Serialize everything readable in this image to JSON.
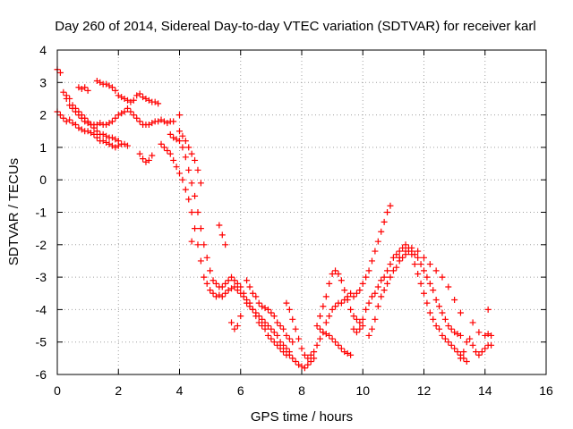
{
  "chart_data": {
    "type": "scatter",
    "title": "Day 260 of 2014, Sidereal Day-to-day VTEC variation (SDTVAR) for receiver karl",
    "xlabel": "GPS time / hours",
    "ylabel": "SDTVAR / TECUs",
    "xlim": [
      0,
      16
    ],
    "ylim": [
      -6,
      4
    ],
    "xticks": [
      "0",
      "2",
      "4",
      "6",
      "8",
      "10",
      "12",
      "14",
      "16"
    ],
    "yticks": [
      "4",
      "3",
      "2",
      "1",
      "0",
      "-1",
      "-2",
      "-3",
      "-4",
      "-5",
      "-6"
    ],
    "grid": true,
    "marker": "plus",
    "color": "#ff0000",
    "series": [
      {
        "x": [
          0.0,
          0.1,
          0.2,
          0.3,
          0.4,
          0.5,
          0.6,
          0.7,
          0.8,
          0.9,
          1.0,
          1.1,
          1.2,
          1.3,
          1.4,
          1.5,
          1.6,
          1.7,
          1.8,
          1.9,
          2.0,
          2.1,
          2.2,
          2.3
        ],
        "y": [
          2.1,
          2.0,
          1.9,
          1.8,
          1.85,
          1.75,
          1.7,
          1.6,
          1.55,
          1.5,
          1.5,
          1.45,
          1.4,
          1.3,
          1.2,
          1.2,
          1.15,
          1.1,
          1.05,
          1.0,
          1.05,
          1.1,
          1.1,
          1.05
        ]
      },
      {
        "x": [
          0.0,
          0.1,
          0.2,
          0.3,
          0.4,
          0.5,
          0.6,
          0.7,
          0.8,
          0.9,
          1.0,
          1.1,
          1.2,
          1.3,
          1.4,
          1.5,
          1.6,
          1.7,
          1.8,
          1.9,
          2.0,
          2.1,
          2.2,
          2.3,
          2.4,
          2.5,
          2.6,
          2.7,
          2.8,
          2.9,
          3.0,
          3.1,
          3.2,
          3.3,
          3.4,
          3.5,
          3.6,
          3.7,
          3.8
        ],
        "y": [
          3.4,
          3.3,
          2.7,
          2.5,
          2.3,
          2.2,
          2.1,
          2.0,
          1.9,
          1.8,
          1.75,
          1.7,
          1.7,
          1.7,
          1.75,
          1.7,
          1.7,
          1.75,
          1.8,
          1.9,
          2.0,
          2.05,
          2.1,
          2.2,
          2.1,
          2.0,
          1.9,
          1.8,
          1.7,
          1.7,
          1.7,
          1.75,
          1.8,
          1.8,
          1.85,
          1.8,
          1.75,
          1.8,
          1.8
        ]
      },
      {
        "x": [
          0.3,
          0.4,
          0.5,
          0.6,
          0.7,
          0.8,
          0.9,
          1.0,
          1.1,
          1.2,
          1.3,
          1.4,
          1.5,
          1.6,
          1.7,
          1.8,
          1.9,
          2.0
        ],
        "y": [
          2.6,
          2.5,
          2.3,
          2.2,
          2.1,
          2.0,
          1.9,
          1.8,
          1.7,
          1.6,
          1.5,
          1.4,
          1.4,
          1.35,
          1.3,
          1.3,
          1.25,
          1.2
        ]
      },
      {
        "x": [
          0.7,
          0.8,
          0.9,
          1.0,
          1.3,
          1.4,
          1.5,
          1.6,
          1.7,
          1.8,
          1.9,
          2.0,
          2.1,
          2.2,
          2.3,
          2.4,
          2.5,
          2.6,
          2.7,
          2.8,
          2.9,
          3.0,
          3.1,
          3.2,
          3.3
        ],
        "y": [
          2.85,
          2.8,
          2.85,
          2.75,
          3.05,
          3.0,
          2.95,
          2.95,
          2.9,
          2.85,
          2.75,
          2.6,
          2.55,
          2.5,
          2.45,
          2.4,
          2.45,
          2.6,
          2.65,
          2.55,
          2.5,
          2.45,
          2.4,
          2.4,
          2.35
        ]
      },
      {
        "x": [
          2.7,
          2.8,
          2.9,
          3.0,
          3.1
        ],
        "y": [
          0.8,
          0.65,
          0.55,
          0.6,
          0.75
        ]
      },
      {
        "x": [
          3.4,
          3.5,
          3.6,
          3.7,
          3.8,
          3.9,
          4.0,
          4.1,
          4.2,
          4.3,
          4.4,
          4.5,
          4.6,
          4.7,
          4.8,
          4.9,
          5.0,
          5.1,
          5.2,
          5.3,
          5.4,
          5.5,
          5.6,
          5.7,
          5.8,
          5.9,
          6.0,
          6.1,
          6.2,
          6.3,
          6.4,
          6.5,
          6.6,
          6.7,
          6.8,
          6.9,
          7.0,
          7.1,
          7.2,
          7.3,
          7.4,
          7.5,
          7.6,
          7.7,
          7.8,
          7.9,
          8.0,
          8.1,
          8.2,
          8.3,
          8.4
        ],
        "y": [
          1.1,
          1.0,
          0.9,
          0.8,
          0.6,
          0.4,
          0.2,
          0.0,
          -0.3,
          -0.6,
          -1.0,
          -1.5,
          -2.0,
          -2.5,
          -3.0,
          -3.2,
          -3.4,
          -3.5,
          -3.6,
          -3.55,
          -3.6,
          -3.5,
          -3.4,
          -3.35,
          -3.3,
          -3.4,
          -3.5,
          -3.6,
          -3.8,
          -3.9,
          -4.0,
          -4.2,
          -4.4,
          -4.5,
          -4.6,
          -4.8,
          -4.9,
          -5.0,
          -5.1,
          -5.2,
          -5.3,
          -5.4,
          -5.4,
          -5.5,
          -5.6,
          -5.7,
          -5.75,
          -5.8,
          -5.7,
          -5.6,
          -5.5
        ]
      },
      {
        "x": [
          3.7,
          3.8,
          3.9,
          4.0,
          4.1,
          4.2,
          4.3,
          4.4,
          4.5,
          4.6,
          4.7,
          4.8,
          4.9,
          5.0,
          5.1,
          5.2,
          5.3,
          5.4,
          5.5,
          5.6,
          5.7,
          5.8,
          5.9,
          6.0,
          6.1,
          6.2,
          6.3,
          6.4,
          6.5,
          6.6,
          6.7,
          6.8,
          6.9,
          7.0,
          7.1,
          7.2,
          7.3,
          7.4,
          7.5,
          7.6
        ],
        "y": [
          1.4,
          1.3,
          1.25,
          1.2,
          1.0,
          0.7,
          0.3,
          -0.1,
          -0.5,
          -1.0,
          -1.5,
          -2.0,
          -2.4,
          -2.8,
          -3.1,
          -3.2,
          -3.3,
          -3.3,
          -3.2,
          -3.1,
          -3.0,
          -3.1,
          -3.2,
          -3.3,
          -3.5,
          -3.7,
          -3.8,
          -4.0,
          -4.1,
          -4.2,
          -4.3,
          -4.4,
          -4.5,
          -4.6,
          -4.7,
          -4.8,
          -5.0,
          -5.1,
          -5.2,
          -5.3
        ]
      },
      {
        "x": [
          4.0,
          4.1,
          4.2,
          4.3,
          4.4,
          4.5,
          4.6,
          4.7
        ],
        "y": [
          1.5,
          1.35,
          1.2,
          1.0,
          0.8,
          0.6,
          0.3,
          -0.1
        ]
      },
      {
        "x": [
          5.3,
          5.4,
          5.5
        ],
        "y": [
          -1.4,
          -1.7,
          -2.0
        ]
      },
      {
        "x": [
          5.7,
          5.8,
          5.9,
          6.0
        ],
        "y": [
          -4.4,
          -4.6,
          -4.5,
          -4.2
        ]
      },
      {
        "x": [
          6.2,
          6.3,
          6.4,
          6.5,
          6.6,
          6.7,
          6.8,
          6.9,
          7.0,
          7.1,
          7.2,
          7.3,
          7.4,
          7.5,
          7.6,
          7.7
        ],
        "y": [
          -3.1,
          -3.3,
          -3.5,
          -3.6,
          -3.8,
          -3.9,
          -3.95,
          -4.0,
          -4.1,
          -4.2,
          -4.4,
          -4.5,
          -4.6,
          -4.8,
          -4.9,
          -5.0
        ]
      },
      {
        "x": [
          7.5,
          7.6,
          7.7,
          7.8,
          7.9,
          8.0,
          8.1,
          8.2,
          8.3,
          8.4,
          8.5,
          8.6,
          8.7,
          8.8,
          8.9,
          9.0,
          9.1,
          9.2,
          9.3,
          9.4,
          9.5,
          9.6,
          9.7,
          9.8,
          9.9,
          10.0,
          10.1,
          10.2,
          10.3,
          10.4,
          10.5,
          10.6,
          10.7,
          10.8,
          10.9
        ],
        "y": [
          -3.8,
          -4.0,
          -4.3,
          -4.6,
          -4.9,
          -5.2,
          -5.4,
          -5.5,
          -5.4,
          -5.3,
          -5.1,
          -4.9,
          -4.7,
          -4.4,
          -4.2,
          -4.0,
          -3.9,
          -3.8,
          -3.8,
          -3.7,
          -3.6,
          -3.5,
          -3.6,
          -3.5,
          -3.4,
          -3.2,
          -3.0,
          -2.8,
          -2.5,
          -2.2,
          -1.9,
          -1.6,
          -1.3,
          -1.0,
          -0.8
        ]
      },
      {
        "x": [
          8.5,
          8.6,
          8.7,
          8.8,
          8.9,
          9.0,
          9.1,
          9.2,
          9.3,
          9.4,
          9.5,
          9.6,
          9.7,
          9.8,
          9.9,
          10.0
        ],
        "y": [
          -4.5,
          -4.2,
          -3.9,
          -3.6,
          -3.2,
          -2.9,
          -2.8,
          -2.9,
          -3.1,
          -3.4,
          -3.7,
          -4.0,
          -4.2,
          -4.3,
          -4.4,
          -4.5
        ]
      },
      {
        "x": [
          8.6,
          8.7,
          8.8,
          8.9,
          9.0,
          9.1,
          9.2,
          9.3,
          9.4,
          9.5,
          9.6
        ],
        "y": [
          -4.6,
          -4.7,
          -4.75,
          -4.8,
          -4.9,
          -5.0,
          -5.1,
          -5.2,
          -5.3,
          -5.35,
          -5.4
        ]
      },
      {
        "x": [
          9.7,
          9.8,
          9.9,
          10.0,
          10.1,
          10.2,
          10.3,
          10.4,
          10.5,
          10.6,
          10.7,
          10.8,
          10.9,
          11.0,
          11.1,
          11.2,
          11.3,
          11.4,
          11.5,
          11.6,
          11.7,
          11.8,
          11.9,
          12.0,
          12.1,
          12.2,
          12.3,
          12.4,
          12.5,
          12.6,
          12.7,
          12.8,
          12.9,
          13.0,
          13.1,
          13.2,
          13.3,
          13.4
        ],
        "y": [
          -4.6,
          -4.7,
          -4.6,
          -4.3,
          -4.0,
          -3.8,
          -3.6,
          -3.5,
          -3.3,
          -3.1,
          -3.0,
          -2.8,
          -2.6,
          -2.4,
          -2.3,
          -2.2,
          -2.1,
          -2.0,
          -2.1,
          -2.3,
          -2.6,
          -2.9,
          -3.2,
          -3.5,
          -3.8,
          -4.1,
          -4.3,
          -4.5,
          -4.6,
          -4.8,
          -4.9,
          -5.0,
          -5.1,
          -5.2,
          -5.3,
          -5.4,
          -5.5,
          -5.6
        ]
      },
      {
        "x": [
          10.2,
          10.3,
          10.4,
          10.5,
          10.6,
          10.7,
          10.8,
          10.9,
          11.0,
          11.1,
          11.2,
          11.3,
          11.4,
          11.5,
          11.6,
          11.7,
          11.8,
          11.9,
          12.0,
          12.1,
          12.2,
          12.3,
          12.4,
          12.5,
          12.6,
          12.7,
          12.8,
          12.9,
          13.0,
          13.1,
          13.2
        ],
        "y": [
          -4.8,
          -4.6,
          -4.3,
          -3.9,
          -3.6,
          -3.4,
          -3.2,
          -3.0,
          -2.8,
          -2.7,
          -2.5,
          -2.4,
          -2.3,
          -2.2,
          -2.2,
          -2.3,
          -2.4,
          -2.6,
          -2.8,
          -3.0,
          -3.2,
          -3.4,
          -3.7,
          -3.9,
          -4.1,
          -4.3,
          -4.5,
          -4.6,
          -4.7,
          -4.75,
          -4.8
        ]
      },
      {
        "x": [
          11.2,
          11.4,
          11.6,
          11.8,
          12.0,
          12.2,
          12.4,
          12.6,
          12.8,
          13.0,
          13.2
        ],
        "y": [
          -2.4,
          -2.2,
          -2.1,
          -2.2,
          -2.4,
          -2.6,
          -2.8,
          -3.0,
          -3.3,
          -3.7,
          -4.1
        ]
      },
      {
        "x": [
          13.2,
          13.3,
          13.4,
          13.5,
          13.6,
          13.7,
          13.8,
          13.9,
          14.0,
          14.1,
          14.2
        ],
        "y": [
          -5.5,
          -5.3,
          -5.0,
          -4.9,
          -5.1,
          -5.3,
          -5.4,
          -5.3,
          -5.2,
          -5.1,
          -5.1
        ]
      },
      {
        "x": [
          13.6,
          13.8,
          14.0,
          14.1,
          14.2
        ],
        "y": [
          -4.4,
          -4.7,
          -4.8,
          -4.75,
          -4.8
        ]
      },
      {
        "x": [
          14.1,
          4.4,
          4.0
        ],
        "y": [
          -4.0,
          -1.9,
          2.0
        ]
      }
    ]
  }
}
